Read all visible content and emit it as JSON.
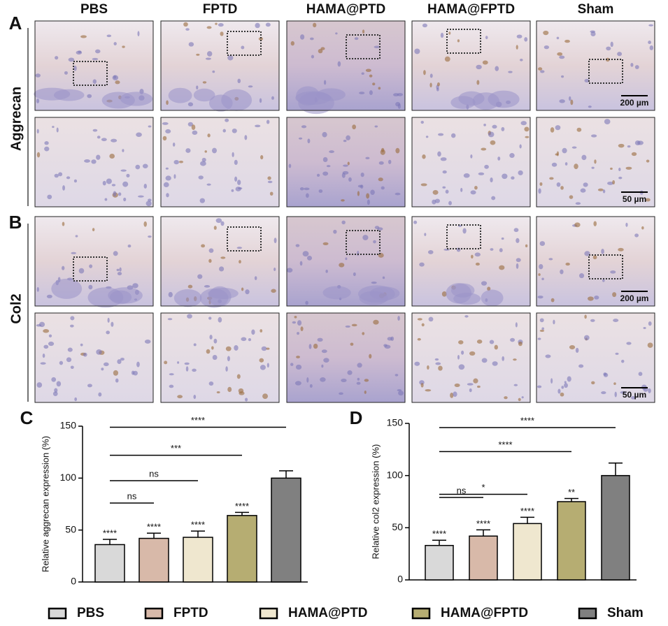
{
  "figure": {
    "panels": [
      "A",
      "B",
      "C",
      "D"
    ],
    "column_headers": [
      "PBS",
      "FPTD",
      "HAMA@PTD",
      "HAMA@FPTD",
      "Sham"
    ],
    "row_labels": [
      "Aggrecan",
      "Col2"
    ],
    "scale_bars": [
      "200 µm",
      "50 µm"
    ]
  },
  "legend": {
    "items": [
      "PBS",
      "FPTD",
      "HAMA@PTD",
      "HAMA@FPTD",
      "Sham"
    ],
    "colors": [
      "#d9d9d9",
      "#d8b9a9",
      "#efe7cf",
      "#b6ad72",
      "#808080"
    ]
  },
  "chart_data": [
    {
      "type": "bar",
      "ylabel": "Relative aggrecan expression (%)",
      "values": [
        36,
        42,
        43,
        64,
        100
      ],
      "errors": [
        5,
        5,
        6,
        3,
        7
      ],
      "bar_labels": [
        "****",
        "****",
        "****",
        "****",
        null
      ],
      "brackets": [
        {
          "label": "ns",
          "from": 0,
          "to": 1,
          "y": 76
        },
        {
          "label": "ns",
          "from": 0,
          "to": 2,
          "y": 97.5
        },
        {
          "label": "***",
          "from": 0,
          "to": 3,
          "y": 122
        },
        {
          "label": "****",
          "from": 0,
          "to": 4,
          "y": 149
        }
      ],
      "ylim": [
        0,
        150
      ],
      "yticks": [
        0,
        50,
        100,
        150
      ]
    },
    {
      "type": "bar",
      "ylabel": "Relative col2 expression (%)",
      "values": [
        33,
        42,
        54,
        75,
        100
      ],
      "errors": [
        5,
        6,
        6,
        3,
        12
      ],
      "bar_labels": [
        "****",
        "****",
        "****",
        "**",
        null
      ],
      "brackets": [
        {
          "label": "ns",
          "from": 0,
          "to": 1,
          "y": 79
        },
        {
          "label": "*",
          "from": 0,
          "to": 2,
          "y": 82
        },
        {
          "label": "****",
          "from": 0,
          "to": 3,
          "y": 123
        },
        {
          "label": "****",
          "from": 0,
          "to": 4,
          "y": 146
        }
      ],
      "ylim": [
        0,
        150
      ],
      "yticks": [
        0,
        50,
        100,
        150
      ]
    }
  ]
}
